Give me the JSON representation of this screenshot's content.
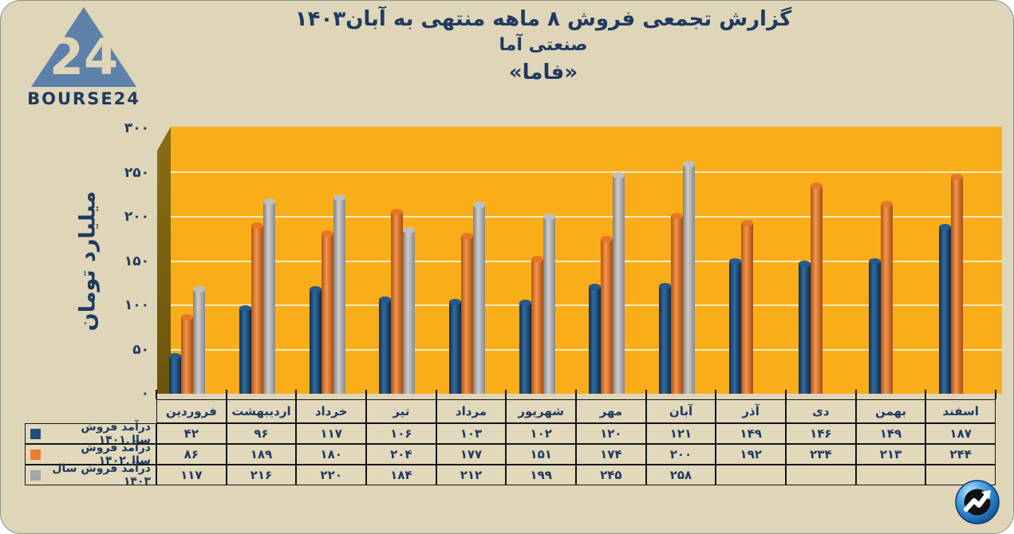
{
  "header": {
    "logo_number": "24",
    "logo_text": "BOURSE24",
    "title_line1": "گزارش تجمعی فروش ۸ ماهه منتهی به آبان۱۴۰۳",
    "title_line2": "صنعتی آما",
    "title_line3": "«فاما»"
  },
  "chart_data": {
    "type": "bar",
    "title": "گزارش تجمعی فروش ۸ ماهه منتهی به آبان۱۴۰۳ صنعتی آما «فاما»",
    "ylabel": "میلیارد تومان",
    "xlabel": "",
    "ylim": [
      0,
      300
    ],
    "yticks": [
      300,
      250,
      200,
      150,
      100,
      50,
      0
    ],
    "grid": true,
    "legend_position": "table-left-column",
    "categories": [
      "فروردین",
      "اردیبهشت",
      "خرداد",
      "تیر",
      "مرداد",
      "شهریور",
      "مهر",
      "آبان",
      "آذر",
      "دی",
      "بهمن",
      "اسفند"
    ],
    "series": [
      {
        "name": "درآمد فروش سال۱۴۰۱",
        "color": "#1F4E79",
        "values": [
          42,
          96,
          117,
          106,
          103,
          102,
          120,
          121,
          149,
          146,
          149,
          187
        ]
      },
      {
        "name": "درآمد فروش سال۱۴۰۲",
        "color": "#ED7D31",
        "values": [
          86,
          189,
          180,
          204,
          177,
          151,
          174,
          200,
          192,
          234,
          213,
          244
        ]
      },
      {
        "name": "درآمد فروش سال ۱۴۰۳",
        "color": "#A6A6A6",
        "values": [
          117,
          216,
          220,
          184,
          212,
          199,
          245,
          258,
          null,
          null,
          null,
          null
        ]
      }
    ]
  },
  "colors": {
    "card_background": "#DFD5B8",
    "plot_background": "#F9AE19",
    "plot_side_wall": "#7E650E",
    "text_navy": "#1F3A60",
    "grid_line": "#FFFFFF",
    "logo_blue": "#5D81A8"
  },
  "footer": {
    "icon": "trending-up-arrow"
  }
}
